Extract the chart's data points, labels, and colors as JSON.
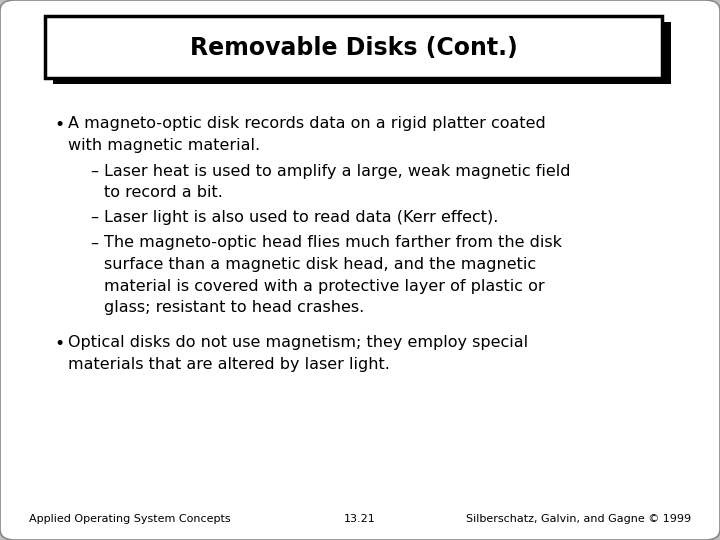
{
  "title": "Removable Disks (Cont.)",
  "background_color": "#c0c0c0",
  "slide_bg": "#ffffff",
  "title_fontsize": 17,
  "body_fontsize": 11.5,
  "footer_fontsize": 8,
  "bullet1_line1": "A magneto-optic disk records data on a rigid platter coated",
  "bullet1_line2": "with magnetic material.",
  "sub1_line1": "Laser heat is used to amplify a large, weak magnetic field",
  "sub1_line2": "to record a bit.",
  "sub2": "Laser light is also used to read data (Kerr effect).",
  "sub3_line1": "The magneto-optic head flies much farther from the disk",
  "sub3_line2": "surface than a magnetic disk head, and the magnetic",
  "sub3_line3": "material is covered with a protective layer of plastic or",
  "sub3_line4": "glass; resistant to head crashes.",
  "bullet2_line1": "Optical disks do not use magnetism; they employ special",
  "bullet2_line2": "materials that are altered by laser light.",
  "footer_left": "Applied Operating System Concepts",
  "footer_center": "13.21",
  "footer_right": "Silberschatz, Galvin, and Gagne © 1999",
  "text_color": "#000000",
  "title_box_color": "#ffffff",
  "title_box_border": "#000000",
  "shadow_color": "#000000",
  "slide_border_color": "#888888"
}
